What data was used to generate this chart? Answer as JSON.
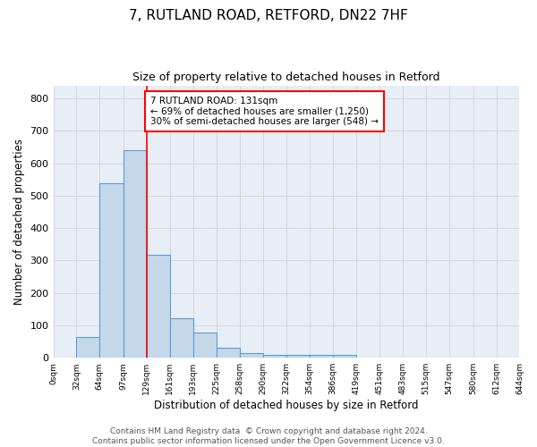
{
  "title1": "7, RUTLAND ROAD, RETFORD, DN22 7HF",
  "title2": "Size of property relative to detached houses in Retford",
  "xlabel": "Distribution of detached houses by size in Retford",
  "ylabel": "Number of detached properties",
  "footer_line1": "Contains HM Land Registry data  © Crown copyright and database right 2024.",
  "footer_line2": "Contains public sector information licensed under the Open Government Licence v3.0.",
  "bin_edges": [
    0,
    32,
    64,
    97,
    129,
    161,
    193,
    225,
    258,
    290,
    322,
    354,
    386,
    419,
    451,
    483,
    515,
    547,
    580,
    612,
    644
  ],
  "bar_heights": [
    0,
    65,
    538,
    640,
    318,
    122,
    77,
    32,
    14,
    10,
    10,
    10,
    8,
    0,
    0,
    0,
    0,
    0,
    0,
    0
  ],
  "bar_facecolor": "#c5d8ea",
  "bar_edgecolor": "#5b9bd5",
  "property_line_x": 129,
  "property_line_color": "red",
  "annotation_text_line1": "7 RUTLAND ROAD: 131sqm",
  "annotation_text_line2": "← 69% of detached houses are smaller (1,250)",
  "annotation_text_line3": "30% of semi-detached houses are larger (548) →",
  "ylim": [
    0,
    840
  ],
  "yticks": [
    0,
    100,
    200,
    300,
    400,
    500,
    600,
    700,
    800
  ],
  "grid_color": "#c8d4e3",
  "bg_color": "#e8eef5",
  "title1_fontsize": 11,
  "title2_fontsize": 9,
  "tick_label_fontsize": 6.5,
  "axis_label_fontsize": 8.5,
  "footer_fontsize": 6.5,
  "annotation_fontsize": 7.5
}
